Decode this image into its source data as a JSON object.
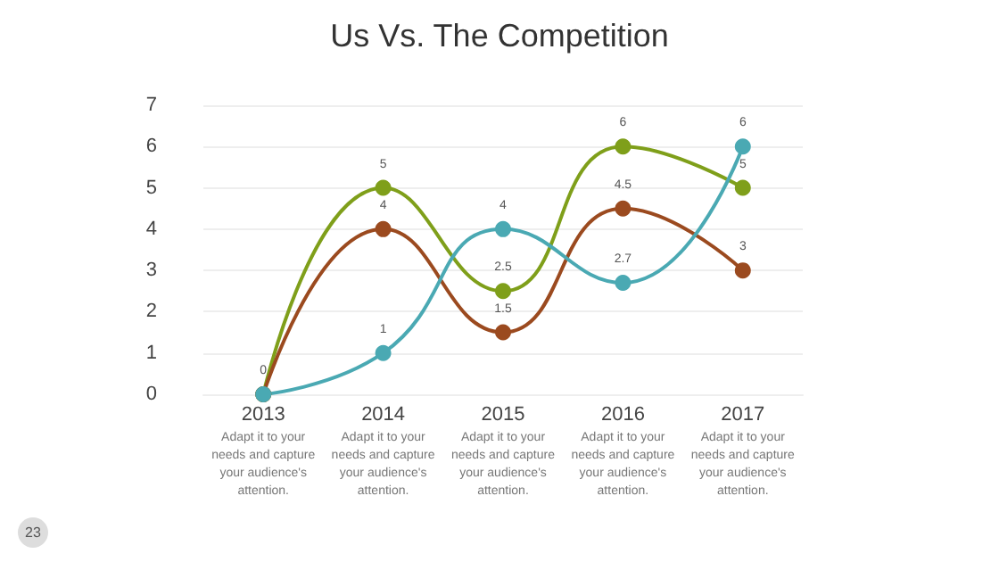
{
  "chart_data": {
    "type": "line",
    "title": "Us Vs. The Competition",
    "categories": [
      "2013",
      "2014",
      "2015",
      "2016",
      "2017"
    ],
    "series": [
      {
        "color": "#7f9f1a",
        "values": [
          0,
          5,
          2.5,
          6,
          5
        ],
        "value_labels": [
          "0",
          "5",
          "2.5",
          "6",
          "5"
        ]
      },
      {
        "color": "#9b4a1f",
        "values": [
          0,
          4,
          1.5,
          4.5,
          3
        ],
        "value_labels": [
          null,
          "4",
          "1.5",
          "4.5",
          "3"
        ]
      },
      {
        "color": "#4aa9b3",
        "values": [
          0,
          1,
          4,
          2.7,
          6
        ],
        "value_labels": [
          null,
          "1",
          "4",
          "2.7",
          "6"
        ]
      }
    ],
    "ylim": [
      0,
      7
    ],
    "yticks": [
      0,
      1,
      2,
      3,
      4,
      5,
      6,
      7
    ],
    "grid": "y",
    "marker": "circle",
    "line_style": "solid",
    "annotations": [
      "Adapt it to your needs and capture your audience's attention.",
      "Adapt it to your needs and capture your audience's attention.",
      "Adapt it to your needs and capture your audience's attention.",
      "Adapt it to your needs and capture your audience's attention.",
      "Adapt it to your needs and capture your audience's attention.",
      "23"
    ]
  }
}
